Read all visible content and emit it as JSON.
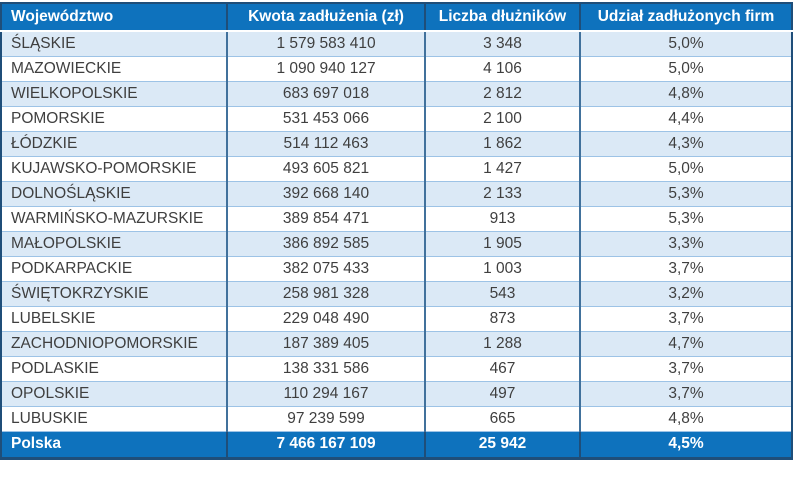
{
  "table": {
    "headers": [
      "Województwo",
      "Kwota zadłużenia (zł)",
      "Liczba dłużników",
      "Udział zadłużonych firm"
    ],
    "rows": [
      {
        "region": "ŚLĄSKIE",
        "debt": "1 579 583 410",
        "debtors": "3 348",
        "share": "5,0%"
      },
      {
        "region": "MAZOWIECKIE",
        "debt": "1 090 940 127",
        "debtors": "4 106",
        "share": "5,0%"
      },
      {
        "region": "WIELKOPOLSKIE",
        "debt": "683 697 018",
        "debtors": "2 812",
        "share": "4,8%"
      },
      {
        "region": "POMORSKIE",
        "debt": "531 453 066",
        "debtors": "2 100",
        "share": "4,4%"
      },
      {
        "region": "ŁÓDZKIE",
        "debt": "514 112 463",
        "debtors": "1 862",
        "share": "4,3%"
      },
      {
        "region": "KUJAWSKO-POMORSKIE",
        "debt": "493 605 821",
        "debtors": "1 427",
        "share": "5,0%"
      },
      {
        "region": "DOLNOŚLĄSKIE",
        "debt": "392 668 140",
        "debtors": "2 133",
        "share": "5,3%"
      },
      {
        "region": "WARMIŃSKO-MAZURSKIE",
        "debt": "389 854 471",
        "debtors": "913",
        "share": "5,3%"
      },
      {
        "region": "MAŁOPOLSKIE",
        "debt": "386 892 585",
        "debtors": "1 905",
        "share": "3,3%"
      },
      {
        "region": "PODKARPACKIE",
        "debt": "382 075 433",
        "debtors": "1 003",
        "share": "3,7%"
      },
      {
        "region": "ŚWIĘTOKRZYSKIE",
        "debt": "258 981 328",
        "debtors": "543",
        "share": "3,2%"
      },
      {
        "region": "LUBELSKIE",
        "debt": "229 048 490",
        "debtors": "873",
        "share": "3,7%"
      },
      {
        "region": "ZACHODNIOPOMORSKIE",
        "debt": "187 389 405",
        "debtors": "1 288",
        "share": "4,7%"
      },
      {
        "region": "PODLASKIE",
        "debt": "138 331 586",
        "debtors": "467",
        "share": "3,7%"
      },
      {
        "region": "OPOLSKIE",
        "debt": "110 294 167",
        "debtors": "497",
        "share": "3,7%"
      },
      {
        "region": "LUBUSKIE",
        "debt": "97 239 599",
        "debtors": "665",
        "share": "4,8%"
      }
    ],
    "total": {
      "region": "Polska",
      "debt": "7 466 167 109",
      "debtors": "25 942",
      "share": "4,5%"
    }
  },
  "colors": {
    "header_bg": "#0e72bd",
    "total_bg": "#0e72bd",
    "outer_border": "#1f4e79",
    "band_row_bg": "#dbe9f6",
    "row_line": "#9dc3e6",
    "col_line": "#41719c",
    "body_text": "#3f3f3f",
    "header_text": "#ffffff"
  }
}
